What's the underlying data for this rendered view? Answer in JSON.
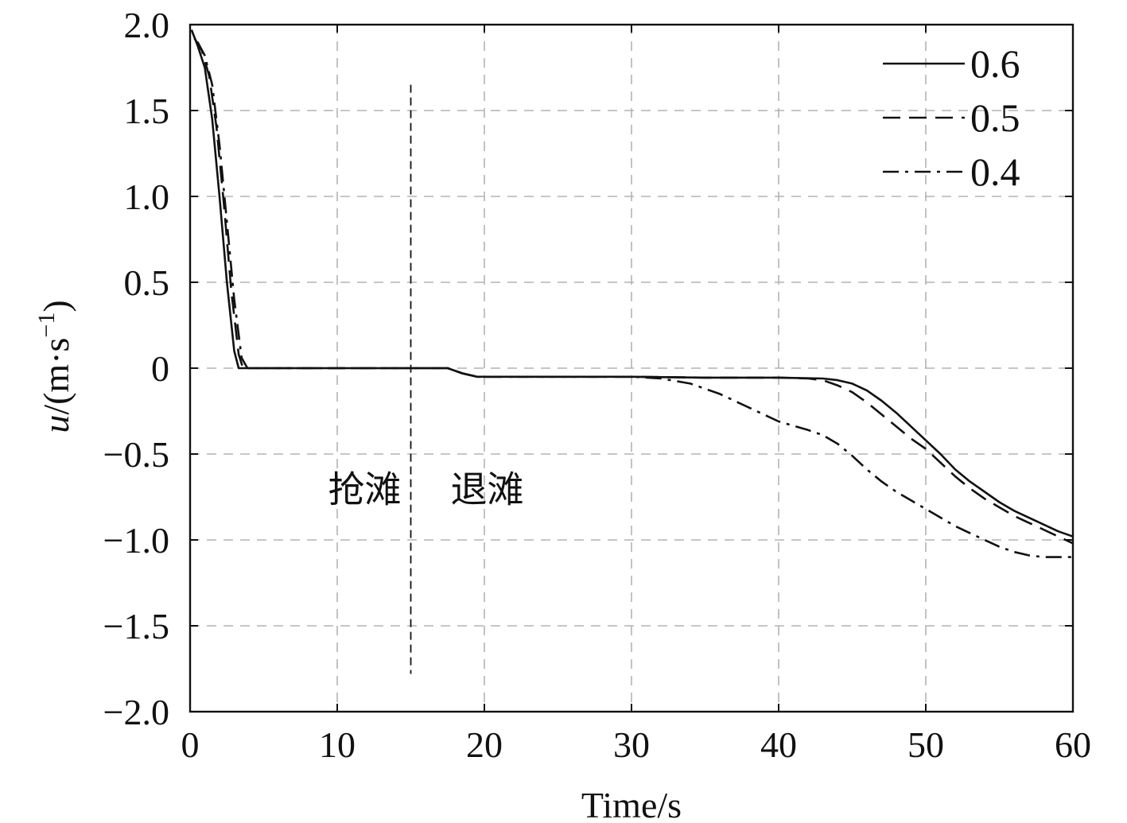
{
  "chart_data": {
    "type": "line",
    "title": "",
    "xlabel": "Time/s",
    "ylabel_var": "u",
    "ylabel_unit_open": "/(m·s",
    "ylabel_unit_sup": "−1",
    "ylabel_unit_close": ")",
    "xlim": [
      0,
      60
    ],
    "ylim": [
      -2.0,
      2.0
    ],
    "x_ticks": [
      0,
      10,
      20,
      30,
      40,
      50,
      60
    ],
    "x_tick_labels": [
      "0",
      "10",
      "20",
      "30",
      "40",
      "50",
      "60"
    ],
    "y_ticks": [
      2.0,
      1.5,
      1.0,
      0.5,
      0,
      -0.5,
      -1.0,
      -1.5,
      -2.0
    ],
    "y_tick_labels": [
      "2.0",
      "1.5",
      "1.0",
      "0.5",
      "0",
      "−0.5",
      "−1.0",
      "−1.5",
      "−2.0"
    ],
    "grid": true,
    "legend_position": "top-right",
    "annotations": {
      "divider_x": 15,
      "divider_y_range": [
        1.65,
        -1.78
      ],
      "left_label": "抢滩",
      "right_label": "退滩"
    },
    "series": [
      {
        "name": "0.6",
        "style": "solid",
        "x": [
          0.1,
          0.5,
          1.0,
          1.5,
          2.0,
          2.5,
          3.0,
          3.3,
          5,
          10,
          15,
          17.5,
          18.5,
          19.5,
          25,
          30,
          35,
          40,
          43,
          44,
          45,
          46,
          47,
          48,
          49,
          50,
          51,
          52,
          53,
          54,
          55,
          56,
          57,
          58,
          59,
          60
        ],
        "y": [
          1.97,
          1.88,
          1.75,
          1.45,
          1.0,
          0.5,
          0.1,
          0.0,
          0.0,
          0.0,
          0.0,
          0.0,
          -0.03,
          -0.05,
          -0.05,
          -0.05,
          -0.055,
          -0.055,
          -0.06,
          -0.07,
          -0.09,
          -0.13,
          -0.19,
          -0.26,
          -0.34,
          -0.42,
          -0.5,
          -0.59,
          -0.66,
          -0.72,
          -0.78,
          -0.83,
          -0.87,
          -0.91,
          -0.95,
          -0.98
        ]
      },
      {
        "name": "0.5",
        "style": "dashed",
        "x": [
          0.3,
          0.8,
          1.3,
          1.8,
          2.3,
          2.8,
          3.3,
          3.6,
          5,
          10,
          15,
          17.5,
          18.5,
          19.5,
          25,
          30,
          35,
          40,
          42,
          43,
          44,
          45,
          46,
          47,
          48,
          49,
          50,
          51,
          52,
          53,
          54,
          55,
          56,
          57,
          58,
          59,
          60
        ],
        "y": [
          1.92,
          1.85,
          1.7,
          1.4,
          0.95,
          0.45,
          0.08,
          0.0,
          0.0,
          0.0,
          0.0,
          0.0,
          -0.03,
          -0.05,
          -0.05,
          -0.05,
          -0.055,
          -0.055,
          -0.06,
          -0.07,
          -0.1,
          -0.14,
          -0.2,
          -0.27,
          -0.34,
          -0.41,
          -0.47,
          -0.55,
          -0.63,
          -0.7,
          -0.76,
          -0.81,
          -0.86,
          -0.9,
          -0.94,
          -0.98,
          -1.02
        ]
      },
      {
        "name": "0.4",
        "style": "dash-dot",
        "x": [
          0.5,
          1.0,
          1.5,
          2.0,
          2.5,
          3.0,
          3.5,
          3.9,
          5,
          10,
          15,
          17.5,
          18.5,
          19.5,
          25,
          30,
          32,
          34,
          36,
          38,
          40,
          42,
          43,
          44,
          45,
          46,
          47,
          48,
          49,
          50,
          51,
          52,
          53,
          54,
          55,
          56,
          57,
          58,
          59,
          60
        ],
        "y": [
          1.9,
          1.82,
          1.65,
          1.3,
          0.85,
          0.4,
          0.06,
          0.0,
          0.0,
          0.0,
          0.0,
          0.0,
          -0.03,
          -0.05,
          -0.05,
          -0.05,
          -0.06,
          -0.09,
          -0.15,
          -0.23,
          -0.31,
          -0.36,
          -0.39,
          -0.44,
          -0.51,
          -0.59,
          -0.66,
          -0.72,
          -0.77,
          -0.82,
          -0.87,
          -0.92,
          -0.96,
          -1.0,
          -1.04,
          -1.07,
          -1.09,
          -1.1,
          -1.1,
          -1.1
        ]
      }
    ]
  }
}
